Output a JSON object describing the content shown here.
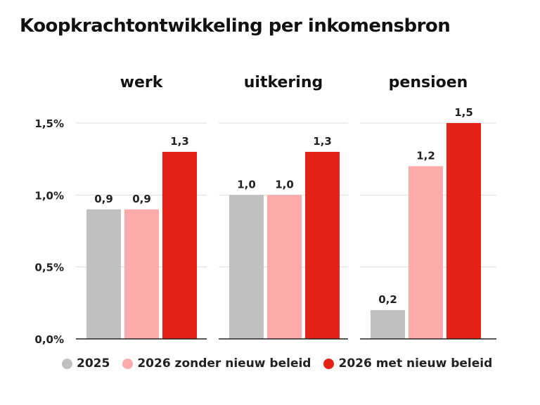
{
  "chart_data": {
    "type": "bar",
    "title": "Koopkrachtontwikkeling per inkomensbron",
    "panels": [
      {
        "name": "werk",
        "values": [
          0.9,
          0.9,
          1.3
        ],
        "labels": [
          "0,9",
          "0,9",
          "1,3"
        ]
      },
      {
        "name": "uitkering",
        "values": [
          1.0,
          1.0,
          1.3
        ],
        "labels": [
          "1,0",
          "1,0",
          "1,3"
        ]
      },
      {
        "name": "pensioen",
        "values": [
          0.2,
          1.2,
          1.5
        ],
        "labels": [
          "0,2",
          "1,2",
          "1,5"
        ]
      }
    ],
    "series": [
      {
        "name": "2025",
        "color": "#c0c0c0"
      },
      {
        "name": "2026 zonder nieuw beleid",
        "color": "#fcaaaa"
      },
      {
        "name": "2026 met nieuw beleid",
        "color": "#e52218"
      }
    ],
    "yticks": [
      0,
      0.5,
      1.0,
      1.5
    ],
    "ytick_labels": [
      "0,0%",
      "0,5%",
      "1,0%",
      "1,5%"
    ],
    "ylim": [
      0,
      1.5
    ],
    "grid": true,
    "legend_position": "bottom"
  }
}
